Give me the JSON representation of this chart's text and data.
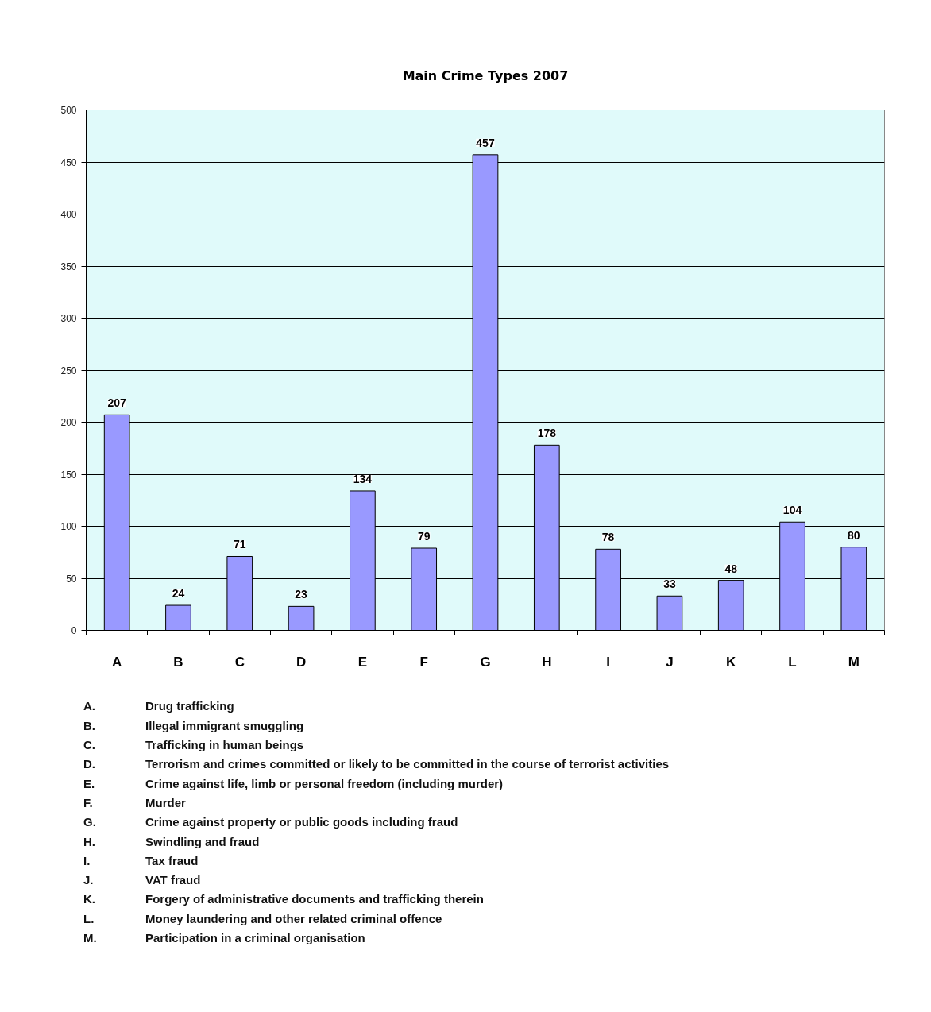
{
  "chart_data": {
    "type": "bar",
    "title": "Main Crime Types 2007",
    "categories": [
      "A",
      "B",
      "C",
      "D",
      "E",
      "F",
      "G",
      "H",
      "I",
      "J",
      "K",
      "L",
      "M"
    ],
    "values": [
      207,
      24,
      71,
      23,
      134,
      79,
      457,
      178,
      78,
      33,
      48,
      104,
      80
    ],
    "color": "#9999ff",
    "ylim": [
      0,
      500
    ],
    "yticks": [
      0,
      50,
      100,
      150,
      200,
      250,
      300,
      350,
      400,
      450,
      500
    ],
    "grid": "y",
    "data_labels": true,
    "annotations": [
      "A. Drug trafficking",
      "B. Illegal immigrant smuggling",
      "C. Trafficking in human beings",
      "D. Terrorism and crimes committed or likely to be committed in the course of terrorist activities",
      "E. Crime against life, limb or personal freedom (including murder)",
      "F. Murder",
      "G. Crime against property or public goods including fraud",
      "H. Swindling and fraud",
      "I. Tax fraud",
      "J. VAT fraud",
      "K. Forgery of administrative documents and trafficking therein",
      "L. Money laundering and other related criminal offence",
      "M. Participation in a criminal organisation"
    ]
  }
}
